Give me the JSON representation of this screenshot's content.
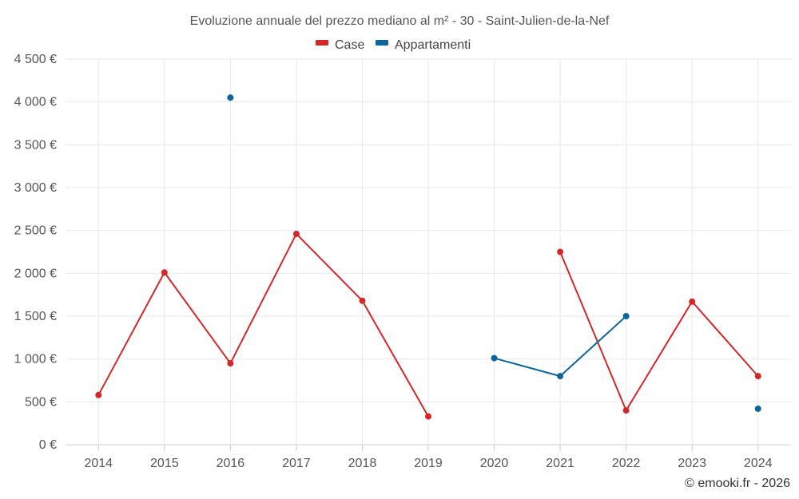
{
  "chart_data": {
    "type": "line",
    "title": "Evoluzione annuale del prezzo mediano al m² - 30 - Saint-Julien-de-la-Nef",
    "xlabel": "",
    "ylabel": "",
    "categories": [
      "2014",
      "2015",
      "2016",
      "2017",
      "2018",
      "2019",
      "2020",
      "2021",
      "2022",
      "2023",
      "2024"
    ],
    "ylim": [
      0,
      4500
    ],
    "yticks": [
      0,
      500,
      1000,
      1500,
      2000,
      2500,
      3000,
      3500,
      4000,
      4500
    ],
    "ytick_labels": [
      "0 €",
      "500 €",
      "1 000 €",
      "1 500 €",
      "2 000 €",
      "2 500 €",
      "3 000 €",
      "3 500 €",
      "4 000 €",
      "4 500 €"
    ],
    "grid": true,
    "legend_position": "top-center",
    "series": [
      {
        "name": "Case",
        "color": "#d62728",
        "values": [
          580,
          2010,
          950,
          2460,
          1680,
          330,
          null,
          2250,
          400,
          1670,
          800
        ]
      },
      {
        "name": "Appartamenti",
        "color": "#0b66a0",
        "values": [
          null,
          null,
          4050,
          null,
          null,
          null,
          1010,
          800,
          1500,
          null,
          420
        ]
      }
    ]
  },
  "credit": "© emooki.fr - 2026"
}
